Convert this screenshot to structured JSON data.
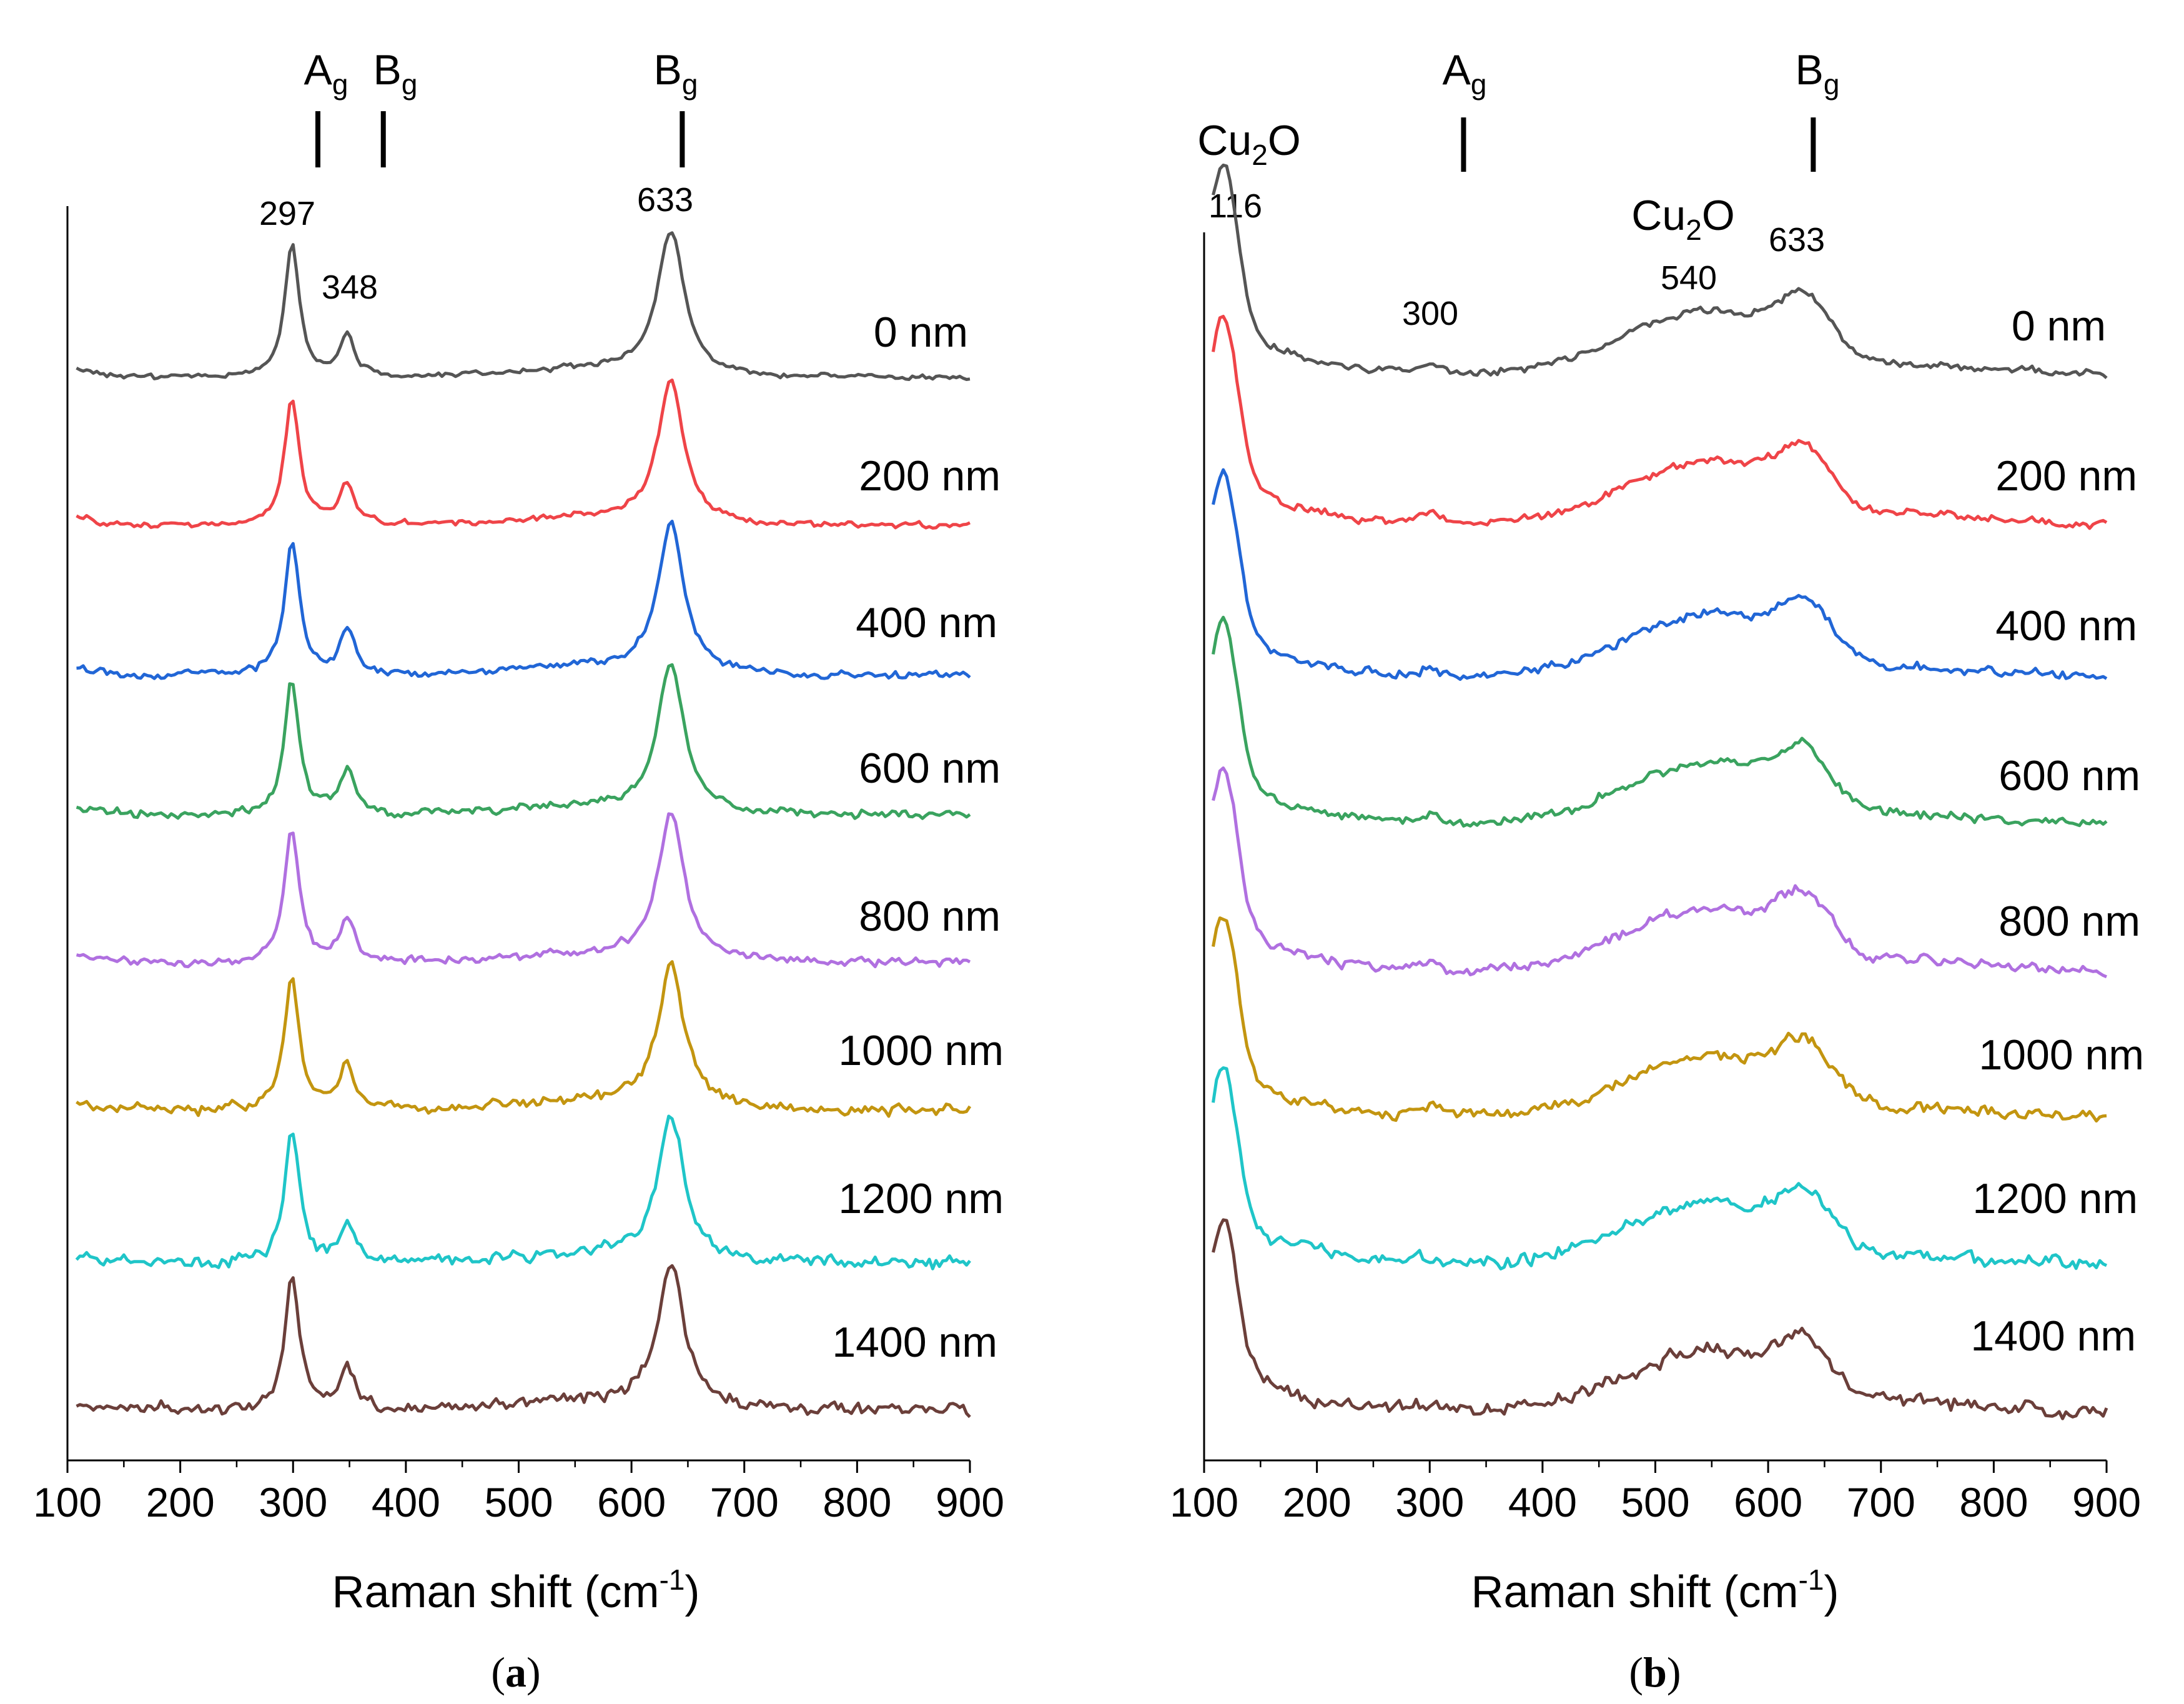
{
  "chart_data": [
    {
      "panel": "(a)",
      "caption_letter": "a",
      "type": "line",
      "xlabel": "Raman shift (cm",
      "xlabel_sup": "-1",
      "xlim": [
        100,
        900
      ],
      "xticks": [
        100,
        200,
        300,
        400,
        500,
        600,
        700,
        800,
        900
      ],
      "ylabel": "",
      "peaks": [
        {
          "label": "297",
          "x": 297,
          "intensity": 1.0
        },
        {
          "label": "348",
          "x": 348,
          "intensity": 0.35
        },
        {
          "label": "633",
          "x": 633,
          "intensity": 1.1
        }
      ],
      "mode_markers": [
        {
          "label": "A",
          "sub": "g",
          "x": 322
        },
        {
          "label": "B",
          "sub": "g",
          "x": 380
        },
        {
          "label": "B",
          "sub": "g",
          "x": 645
        }
      ],
      "series": [
        {
          "name": "0 nm",
          "color": "#555555"
        },
        {
          "name": "200 nm",
          "color": "#ef4448"
        },
        {
          "name": "400 nm",
          "color": "#2166d6"
        },
        {
          "name": "600 nm",
          "color": "#3aa35f"
        },
        {
          "name": "800 nm",
          "color": "#b070e0"
        },
        {
          "name": "1000 nm",
          "color": "#c39510"
        },
        {
          "name": "1200 nm",
          "color": "#1fc5c8"
        },
        {
          "name": "1400 nm",
          "color": "#6b3f3a"
        }
      ]
    },
    {
      "panel": "(b)",
      "caption_letter": "b",
      "type": "line",
      "xlabel": "Raman shift (cm",
      "xlabel_sup": "-1",
      "xlim": [
        100,
        900
      ],
      "xticks": [
        100,
        200,
        300,
        400,
        500,
        600,
        700,
        800,
        900
      ],
      "ylabel": "",
      "peaks": [
        {
          "label": "116",
          "x": 116,
          "intensity": 0.9
        },
        {
          "label": "300",
          "x": 300,
          "intensity": 0.1
        },
        {
          "label": "540",
          "x": 540,
          "intensity": 0.45
        },
        {
          "label": "633",
          "x": 633,
          "intensity": 0.55
        }
      ],
      "species_labels": [
        {
          "label": "Cu",
          "sub": "2",
          "label_after": "O",
          "near_x": 116
        },
        {
          "label": "Cu",
          "sub": "2",
          "label_after": "O",
          "near_x": 540
        }
      ],
      "mode_markers": [
        {
          "label": "A",
          "sub": "g",
          "x": 330
        },
        {
          "label": "B",
          "sub": "g",
          "x": 640
        }
      ],
      "series": [
        {
          "name": "0 nm",
          "color": "#555555"
        },
        {
          "name": "200 nm",
          "color": "#ef4448"
        },
        {
          "name": "400 nm",
          "color": "#2166d6"
        },
        {
          "name": "600 nm",
          "color": "#3aa35f"
        },
        {
          "name": "800 nm",
          "color": "#b070e0"
        },
        {
          "name": "1000 nm",
          "color": "#c39510"
        },
        {
          "name": "1200 nm",
          "color": "#1fc5c8"
        },
        {
          "name": "1400 nm",
          "color": "#6b3f3a"
        }
      ]
    }
  ]
}
